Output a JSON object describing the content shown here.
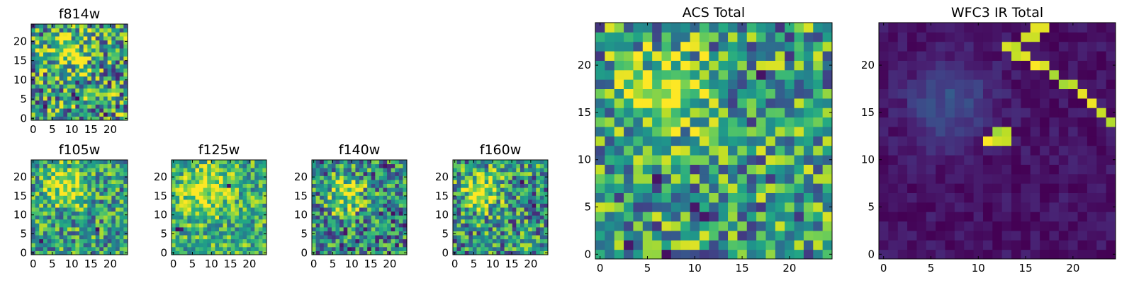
{
  "chart_data": [
    {
      "type": "heatmap",
      "id": "f814w",
      "title": "f814w",
      "grid": 24,
      "colormap": "viridis",
      "xlim": [
        -0.5,
        24.5
      ],
      "ylim": [
        -0.5,
        24.5
      ],
      "xticks": [
        "0",
        "5",
        "10",
        "15",
        "20"
      ],
      "yticks": [
        "0",
        "5",
        "10",
        "15",
        "20"
      ],
      "features": {
        "base": 0.55,
        "noise": 0.45,
        "blobs": [
          {
            "cx": 8,
            "cy": 17,
            "r": 4.5,
            "amp": 0.45
          }
        ],
        "dark_spots": [
          [
            10,
            6
          ],
          [
            11,
            5
          ],
          [
            3,
            3
          ],
          [
            18,
            1
          ]
        ]
      }
    },
    {
      "type": "heatmap",
      "id": "f105w",
      "title": "f105w",
      "grid": 24,
      "colormap": "viridis",
      "xlim": [
        -0.5,
        24.5
      ],
      "ylim": [
        -0.5,
        24.5
      ],
      "xticks": [
        "0",
        "5",
        "10",
        "15",
        "20"
      ],
      "yticks": [
        "0",
        "5",
        "10",
        "15",
        "20"
      ],
      "features": {
        "base": 0.55,
        "noise": 0.35,
        "blobs": [
          {
            "cx": 8,
            "cy": 17,
            "r": 5,
            "amp": 0.45
          }
        ],
        "dark_spots": [
          [
            2,
            3
          ],
          [
            16,
            6
          ]
        ]
      }
    },
    {
      "type": "heatmap",
      "id": "f125w",
      "title": "f125w",
      "grid": 24,
      "colormap": "viridis",
      "xlim": [
        -0.5,
        24.5
      ],
      "ylim": [
        -0.5,
        24.5
      ],
      "xticks": [
        "0",
        "5",
        "10",
        "15",
        "20"
      ],
      "yticks": [
        "0",
        "5",
        "10",
        "15",
        "20"
      ],
      "features": {
        "base": 0.62,
        "noise": 0.3,
        "blobs": [
          {
            "cx": 8,
            "cy": 16,
            "r": 6,
            "amp": 0.35
          }
        ],
        "dark_spots": [
          [
            1,
            6
          ],
          [
            2,
            6
          ],
          [
            14,
            17
          ]
        ]
      }
    },
    {
      "type": "heatmap",
      "id": "f140w",
      "title": "f140w",
      "grid": 24,
      "colormap": "viridis",
      "xlim": [
        -0.5,
        24.5
      ],
      "ylim": [
        -0.5,
        24.5
      ],
      "xticks": [
        "0",
        "5",
        "10",
        "15",
        "20"
      ],
      "yticks": [
        "0",
        "5",
        "10",
        "15",
        "20"
      ],
      "features": {
        "base": 0.45,
        "noise": 0.4,
        "blobs": [
          {
            "cx": 8,
            "cy": 15,
            "r": 5,
            "amp": 0.5
          }
        ],
        "dark_spots": [
          [
            18,
            22
          ],
          [
            20,
            10
          ]
        ]
      }
    },
    {
      "type": "heatmap",
      "id": "f160w",
      "title": "f160w",
      "grid": 24,
      "colormap": "viridis",
      "xlim": [
        -0.5,
        24.5
      ],
      "ylim": [
        -0.5,
        24.5
      ],
      "xticks": [
        "0",
        "5",
        "10",
        "15",
        "20"
      ],
      "yticks": [
        "0",
        "5",
        "10",
        "15",
        "20"
      ],
      "features": {
        "base": 0.5,
        "noise": 0.4,
        "blobs": [
          {
            "cx": 7,
            "cy": 16,
            "r": 5,
            "amp": 0.5
          }
        ],
        "dark_spots": [
          [
            17,
            18
          ],
          [
            20,
            12
          ]
        ]
      }
    },
    {
      "type": "heatmap",
      "id": "acs-total",
      "title": "ACS Total",
      "grid": 25,
      "colormap": "viridis",
      "xlim": [
        -0.5,
        24.5
      ],
      "ylim": [
        -0.5,
        24.5
      ],
      "xticks": [
        "0",
        "5",
        "10",
        "15",
        "20"
      ],
      "yticks": [
        "0",
        "5",
        "10",
        "15",
        "20"
      ],
      "features": {
        "base": 0.55,
        "noise": 0.4,
        "blobs": [
          {
            "cx": 7,
            "cy": 17,
            "r": 4,
            "amp": 0.5
          }
        ],
        "dark_spots": [
          [
            6,
            8
          ],
          [
            10,
            5
          ],
          [
            11,
            4
          ],
          [
            3,
            1
          ],
          [
            7,
            0
          ],
          [
            17,
            19
          ]
        ]
      }
    },
    {
      "type": "heatmap",
      "id": "wfc3-ir-total",
      "title": "WFC3 IR Total",
      "grid": 25,
      "colormap": "viridis",
      "xlim": [
        -0.5,
        24.5
      ],
      "ylim": [
        -0.5,
        24.5
      ],
      "xticks": [
        "0",
        "5",
        "10",
        "15",
        "20"
      ],
      "yticks": [
        "0",
        "5",
        "10",
        "15",
        "20"
      ],
      "features": {
        "base": 0.05,
        "noise": 0.06,
        "blobs": [
          {
            "cx": 7,
            "cy": 16,
            "r": 4.5,
            "amp": 0.2
          }
        ],
        "dark_spots": [
          [
            0,
            6
          ],
          [
            1,
            6
          ],
          [
            2,
            6
          ],
          [
            0,
            5
          ],
          [
            1,
            5
          ]
        ],
        "bright_streak": [
          [
            16,
            24
          ],
          [
            17,
            24
          ],
          [
            15,
            23
          ],
          [
            16,
            23
          ],
          [
            13,
            22
          ],
          [
            14,
            22
          ],
          [
            14,
            21
          ],
          [
            15,
            21
          ],
          [
            16,
            20
          ],
          [
            17,
            20
          ],
          [
            18,
            19
          ],
          [
            19,
            18
          ],
          [
            20,
            18
          ],
          [
            21,
            17
          ],
          [
            22,
            16
          ],
          [
            23,
            15
          ],
          [
            24,
            14
          ]
        ],
        "bright_spots": [
          [
            12,
            13
          ],
          [
            13,
            13
          ],
          [
            12,
            12
          ],
          [
            13,
            12
          ],
          [
            11,
            12
          ]
        ]
      }
    }
  ]
}
